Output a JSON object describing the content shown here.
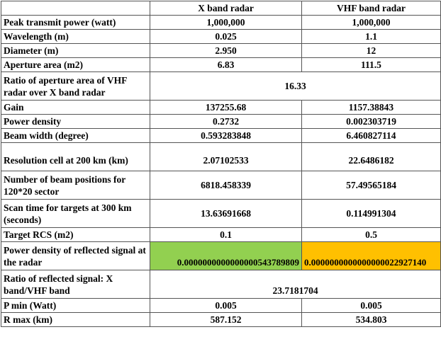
{
  "header": {
    "col1": "X band radar",
    "col2": "VHF band radar"
  },
  "rows": {
    "peak_power": {
      "label": "Peak transmit power (watt)",
      "x": "1,000,000",
      "vhf": "1,000,000"
    },
    "wavelength": {
      "label": "Wavelength (m)",
      "x": "0.025",
      "vhf": "1.1"
    },
    "diameter": {
      "label": "Diameter (m)",
      "x": "2.950",
      "vhf": "12"
    },
    "aperture": {
      "label": "Aperture area (m2)",
      "x": "6.83",
      "vhf": "111.5"
    },
    "aperture_ratio": {
      "label": "Ratio of aperture area of VHF radar over X band radar",
      "value": "16.33"
    },
    "gain": {
      "label": "Gain",
      "x": "137255.68",
      "vhf": "1157.38843"
    },
    "power_density": {
      "label": "Power density",
      "x": "0.2732",
      "vhf": "0.002303719"
    },
    "beam_width": {
      "label": "Beam width (degree)",
      "x": "0.593283848",
      "vhf": "6.460827114"
    },
    "resolution_cell": {
      "label": "Resolution cell at 200 km (km)",
      "x": "2.07102533",
      "vhf": "22.6486182"
    },
    "beam_positions": {
      "label": "Number of beam positions for 120*20 sector",
      "x": "6818.458339",
      "vhf": "57.49565184"
    },
    "scan_time": {
      "label": "Scan time for targets at 300 km (seconds)",
      "x": "13.63691668",
      "vhf": "0.114991304"
    },
    "target_rcs": {
      "label": "Target RCS (m2)",
      "x": "0.1",
      "vhf": "0.5"
    },
    "reflected_density": {
      "label": "Power density of reflected signal at the radar",
      "x": "0.0000000000000000543789809",
      "vhf": "0.0000000000000000022927140"
    },
    "reflected_ratio": {
      "label": "Ratio of reflected signal: X band/VHF band",
      "value": "23.7181704"
    },
    "p_min": {
      "label": "P min (Watt)",
      "x": "0.005",
      "vhf": "0.005"
    },
    "r_max": {
      "label": "R max (km)",
      "x": "587.152",
      "vhf": "534.803"
    }
  },
  "colors": {
    "x_reflected_fill": "#92d050",
    "vhf_reflected_fill": "#ffc000"
  }
}
